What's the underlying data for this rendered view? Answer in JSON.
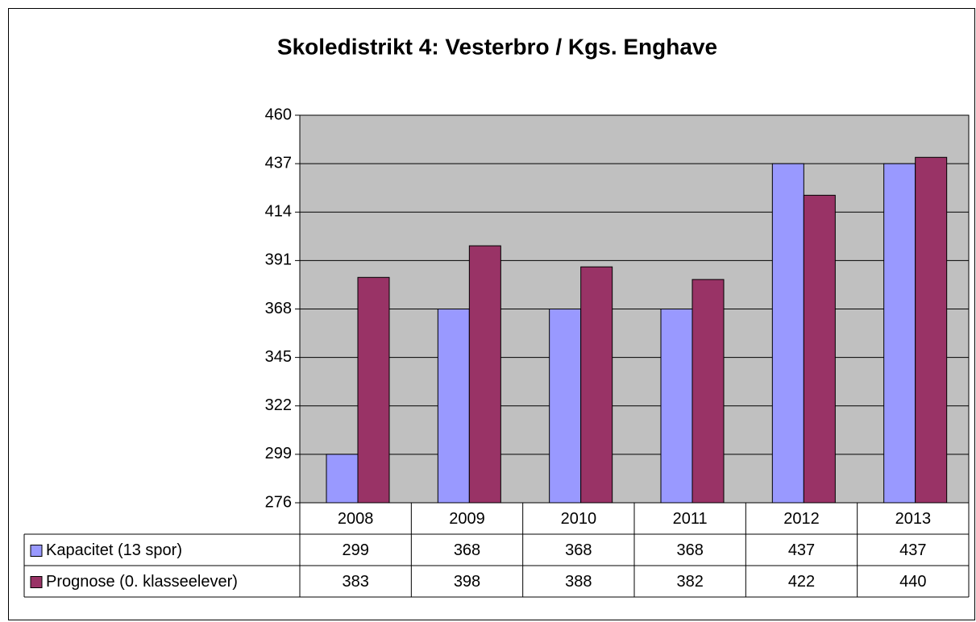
{
  "chart_data": {
    "type": "bar",
    "title": "Skoledistrikt 4: Vesterbro / Kgs. Enghave",
    "categories": [
      "2008",
      "2009",
      "2010",
      "2011",
      "2012",
      "2013"
    ],
    "series": [
      {
        "name": "Kapacitet (13 spor)",
        "color": "#9999ff",
        "values": [
          299,
          368,
          368,
          368,
          437,
          437
        ]
      },
      {
        "name": "Prognose (0. klasseelever)",
        "color": "#993366",
        "values": [
          383,
          398,
          388,
          382,
          422,
          440
        ]
      }
    ],
    "ylim": [
      276,
      460
    ],
    "yticks": [
      276,
      299,
      322,
      345,
      368,
      391,
      414,
      437,
      460
    ],
    "grid": true,
    "plot_background": "#c0c0c0"
  }
}
